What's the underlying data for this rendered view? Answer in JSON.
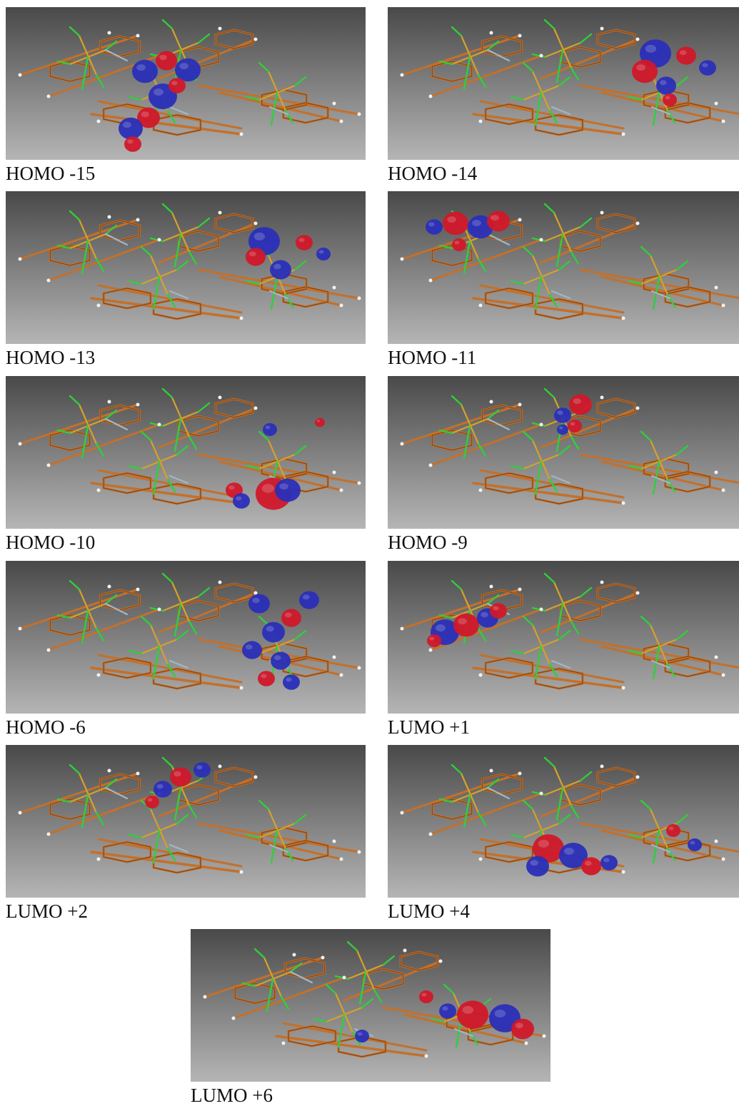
{
  "figure": {
    "panels": [
      {
        "label": "HOMO -15",
        "orbital": "homo-15"
      },
      {
        "label": "HOMO -14",
        "orbital": "homo-14"
      },
      {
        "label": "HOMO -13",
        "orbital": "homo-13"
      },
      {
        "label": "HOMO -11",
        "orbital": "homo-11"
      },
      {
        "label": "HOMO -10",
        "orbital": "homo-10"
      },
      {
        "label": "HOMO -9",
        "orbital": "homo-9"
      },
      {
        "label": "HOMO -6",
        "orbital": "homo-6"
      },
      {
        "label": "LUMO +1",
        "orbital": "lumo+1"
      },
      {
        "label": "LUMO +2",
        "orbital": "lumo+2"
      },
      {
        "label": "LUMO +4",
        "orbital": "lumo+4"
      },
      {
        "label": "LUMO +6",
        "orbital": "lumo+6"
      }
    ],
    "colors": {
      "positive_lobe": "#d0182a",
      "negative_lobe": "#2a2fb8",
      "carbon_bond": "#c4702a",
      "phosphorus_bond": "#d6a12a",
      "chlorine_bond": "#2fcf3a",
      "nitrogen_bond": "#9fb7c8",
      "hydrogen": "#f2f2f2",
      "background_top": "#494949",
      "background_bottom": "#b5b5b5"
    }
  }
}
